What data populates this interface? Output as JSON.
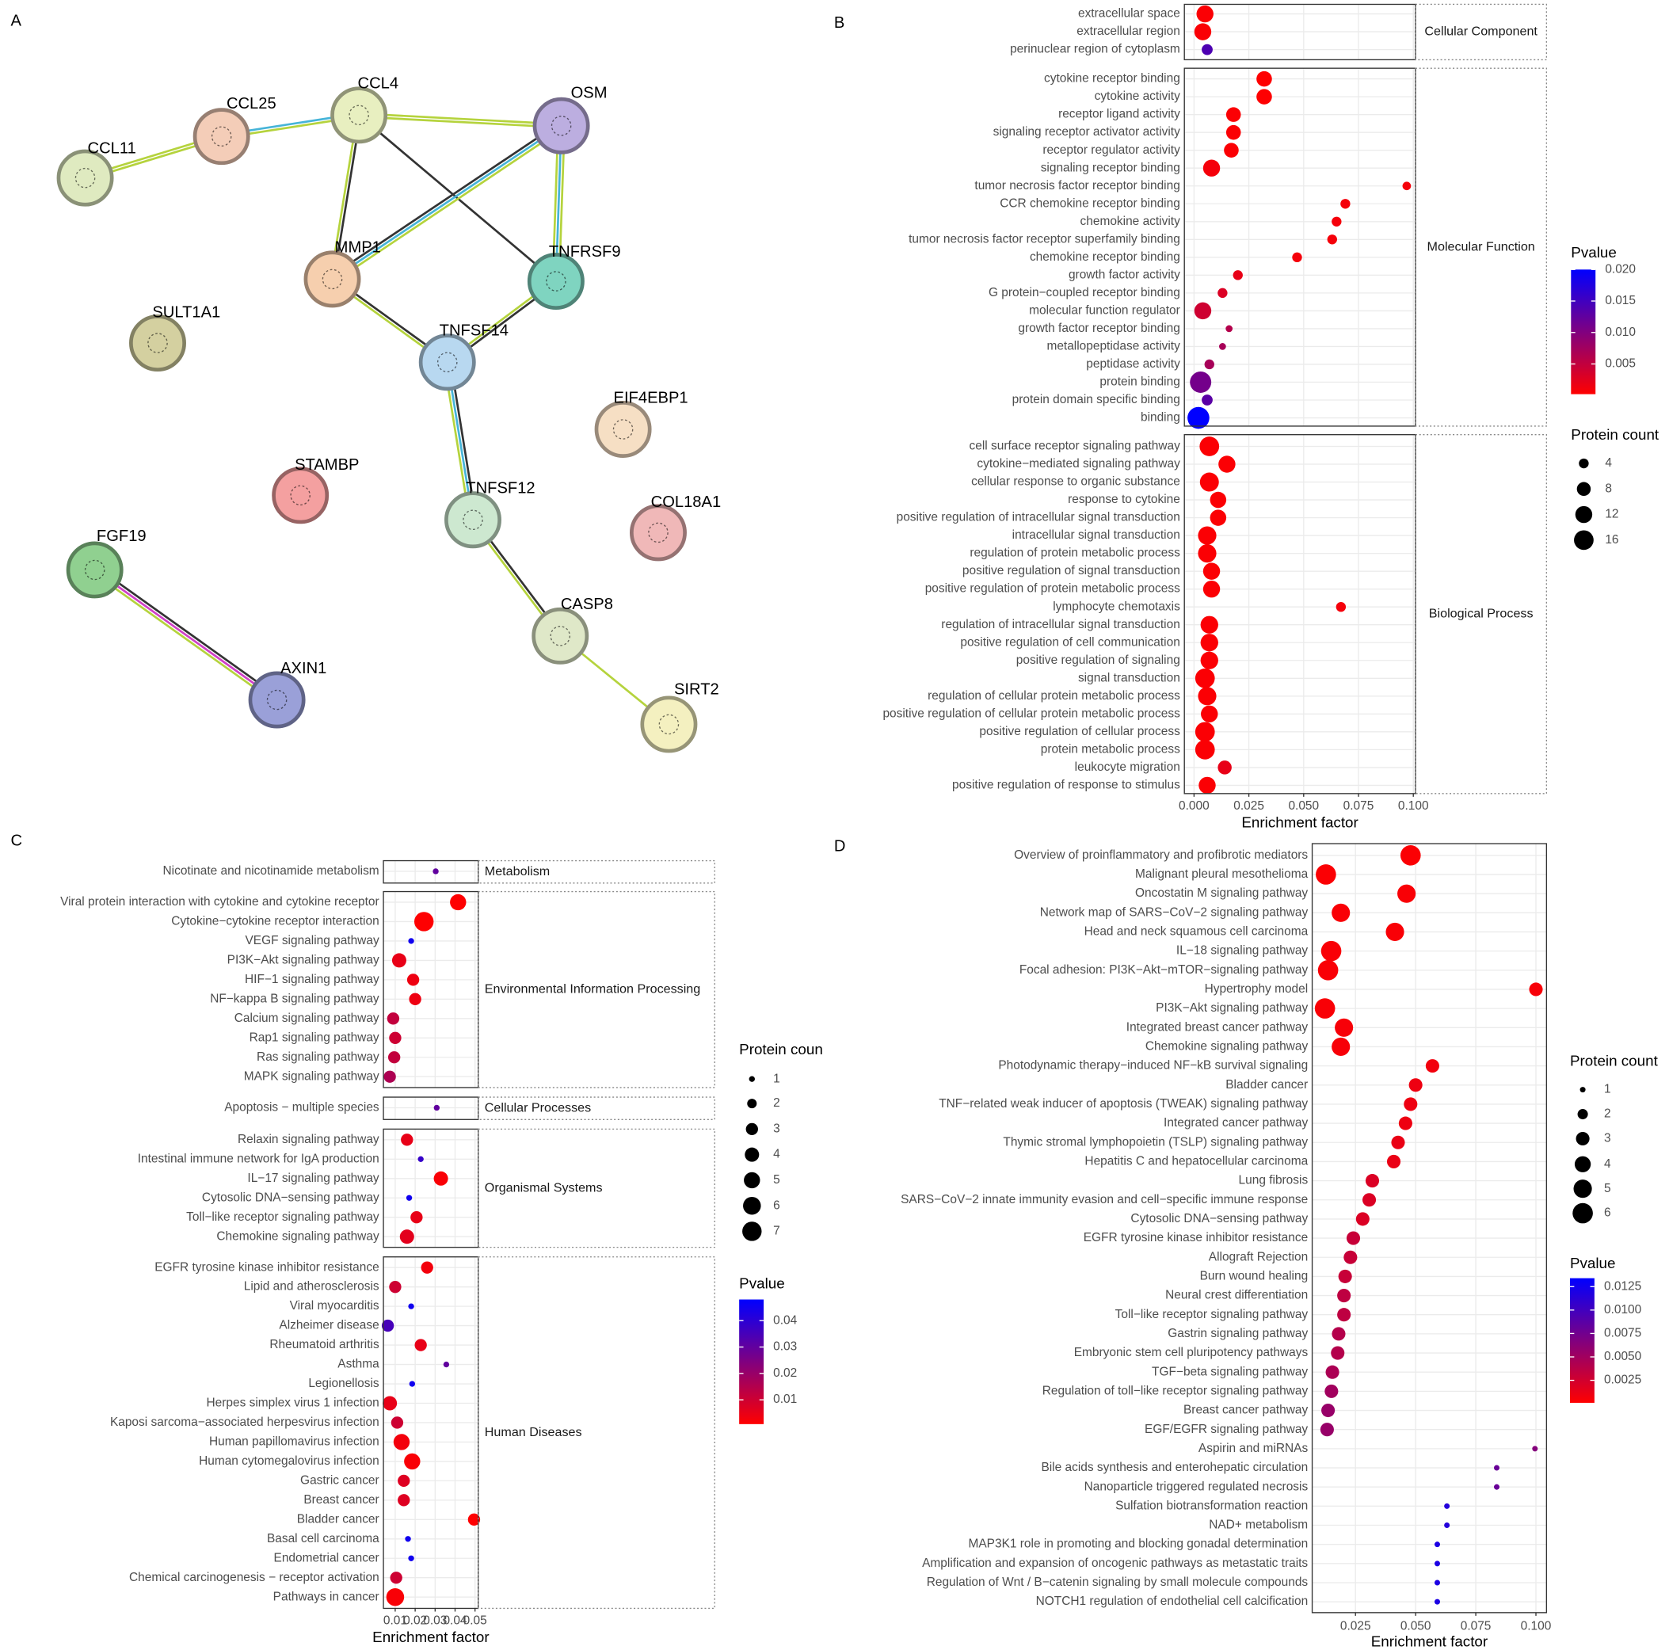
{
  "chart_data": [
    {
      "type": "network",
      "label": "A",
      "nodes": [
        {
          "label": "CCL11",
          "color": "#dfeac0"
        },
        {
          "label": "CCL25",
          "color": "#f4cdb8"
        },
        {
          "label": "CCL4",
          "color": "#e8efc0"
        },
        {
          "label": "OSM",
          "color": "#bcaee0"
        },
        {
          "label": "MMP1",
          "color": "#f6cfae"
        },
        {
          "label": "TNFRSF9",
          "color": "#7fd4c0"
        },
        {
          "label": "SULT1A1",
          "color": "#d4d0a0"
        },
        {
          "label": "TNFSF14",
          "color": "#b8d8f0"
        },
        {
          "label": "EIF4EBP1",
          "color": "#f6dfc4"
        },
        {
          "label": "STAMBP",
          "color": "#f4a0a0"
        },
        {
          "label": "TNFSF12",
          "color": "#cde8d0"
        },
        {
          "label": "COL18A1",
          "color": "#f0b8b8"
        },
        {
          "label": "FGF19",
          "color": "#90d090"
        },
        {
          "label": "CASP8",
          "color": "#dfe8c8"
        },
        {
          "label": "AXIN1",
          "color": "#9aa0d8"
        },
        {
          "label": "SIRT2",
          "color": "#f4f0c0"
        }
      ]
    },
    {
      "type": "dot",
      "label": "B",
      "xlabel": "Enrichment factor",
      "xlim": [
        -0.0044,
        0.101
      ],
      "xticks": [
        {
          "value": 0,
          "label": "0.000"
        },
        0.025,
        {
          "value": 0.05,
          "label": "0.050"
        },
        0.075,
        {
          "value": 0.1,
          "label": "0.100"
        }
      ],
      "color_title": "Pvalue",
      "colors": [
        "#ff0000",
        "#0000ff"
      ],
      "clim": [
        0.0002,
        0.02
      ],
      "cticks": [
        {
          "value": 0.02,
          "label": "0.020"
        },
        0.015,
        {
          "value": 0.01,
          "label": "0.010"
        },
        0.005
      ],
      "size_title": "Protein count",
      "size_ticks": [
        4,
        8,
        12,
        16
      ],
      "groups": [
        {
          "name": "Cellular Component",
          "categories": [
            "extracellular space",
            "extracellular region",
            "perinuclear region of cytoplasm"
          ],
          "values": [
            0.005,
            0.004,
            0.006
          ],
          "count": [
            12,
            12,
            5
          ],
          "pvalue": [
            0.0005,
            0.0006,
            0.014
          ]
        },
        {
          "name": "Molecular Function",
          "categories": [
            "cytokine receptor binding",
            "cytokine activity",
            "receptor ligand activity",
            "signaling receptor activator activity",
            "receptor regulator activity",
            "signaling receptor binding",
            "tumor necrosis factor receptor binding",
            "CCR chemokine receptor binding",
            "chemokine activity",
            "tumor necrosis factor receptor superfamily binding",
            "chemokine receptor binding",
            "growth factor activity",
            "G protein−coupled receptor binding",
            "molecular function regulator",
            "growth factor receptor binding",
            "metallopeptidase activity",
            "peptidase activity",
            "protein binding",
            "protein domain specific binding",
            "binding"
          ],
          "values": [
            0.032,
            0.032,
            0.018,
            0.018,
            0.017,
            0.008,
            0.097,
            0.069,
            0.065,
            0.063,
            0.047,
            0.02,
            0.013,
            0.004,
            0.016,
            0.013,
            0.007,
            0.003,
            0.006,
            0.002
          ],
          "count": [
            10,
            10,
            9,
            9,
            9,
            12,
            3,
            4,
            4,
            4,
            4,
            4,
            4,
            12,
            2,
            2,
            4,
            19,
            5,
            20
          ],
          "pvalue": [
            0.0003,
            0.0003,
            0.0005,
            0.0005,
            0.0005,
            0.001,
            0.001,
            0.001,
            0.001,
            0.001,
            0.001,
            0.002,
            0.003,
            0.004,
            0.006,
            0.007,
            0.007,
            0.011,
            0.013,
            0.02
          ]
        },
        {
          "name": "Biological Process",
          "categories": [
            "cell surface receptor signaling pathway",
            "cytokine−mediated signaling pathway",
            "cellular response to organic substance",
            "response to cytokine",
            "positive regulation of intracellular signal transduction",
            "intracellular signal transduction",
            "regulation of protein metabolic process",
            "positive regulation of signal transduction",
            "positive regulation of protein metabolic process",
            "lymphocyte chemotaxis",
            "regulation of intracellular signal transduction",
            "positive regulation of cell communication",
            "positive regulation of signaling",
            "signal transduction",
            "regulation of cellular protein metabolic process",
            "positive regulation of cellular protein metabolic process",
            "positive regulation of cellular process",
            "protein metabolic process",
            "leukocyte migration",
            "positive regulation of response to stimulus"
          ],
          "values": [
            0.007,
            0.015,
            0.007,
            0.011,
            0.011,
            0.006,
            0.006,
            0.008,
            0.008,
            0.067,
            0.007,
            0.007,
            0.007,
            0.005,
            0.006,
            0.007,
            0.005,
            0.005,
            0.014,
            0.006
          ],
          "count": [
            16,
            12,
            15,
            11,
            11,
            14,
            14,
            12,
            12,
            4,
            13,
            13,
            13,
            16,
            14,
            12,
            16,
            16,
            8,
            12
          ],
          "pvalue": [
            0.0005,
            0.0005,
            0.0005,
            0.0005,
            0.0005,
            0.0005,
            0.0005,
            0.0005,
            0.0005,
            0.001,
            0.0005,
            0.0005,
            0.0005,
            0.0005,
            0.0005,
            0.0005,
            0.0005,
            0.0005,
            0.002,
            0.0005
          ]
        }
      ]
    },
    {
      "type": "dot",
      "label": "C",
      "xlabel": "Enrichment factor",
      "xlim": [
        0.0041,
        0.0516
      ],
      "xticks": [
        0.01,
        0.02,
        0.03,
        0.04,
        0.05
      ],
      "color_title": "Pvalue",
      "colors": [
        "#ff0000",
        "#0000ff"
      ],
      "clim": [
        0.0008,
        0.048
      ],
      "cticks": [
        0.04,
        0.03,
        0.02,
        0.01
      ],
      "size_title": "Protein coun",
      "size_ticks": [
        1,
        2,
        3,
        4,
        5,
        6,
        7
      ],
      "groups": [
        {
          "name": "Metabolism",
          "categories": [
            "Nicotinate and nicotinamide metabolism"
          ],
          "values": [
            0.0303
          ],
          "count": [
            1
          ],
          "pvalue": [
            0.03
          ]
        },
        {
          "name": "Environmental Information Processing",
          "categories": [
            "Viral protein interaction with cytokine and cytokine receptor",
            "Cytokine−cytokine receptor interaction",
            "VEGF signaling pathway",
            "PI3K−Akt signaling pathway",
            "HIF−1 signaling pathway",
            "NF−kappa B signaling pathway",
            "Calcium signaling pathway",
            "Rap1 signaling pathway",
            "Ras signaling pathway",
            "MAPK signaling pathway"
          ],
          "values": [
            0.0415,
            0.0244,
            0.018,
            0.012,
            0.019,
            0.02,
            0.009,
            0.01,
            0.0095,
            0.0073
          ],
          "count": [
            5,
            7,
            1,
            4,
            3,
            3,
            3,
            3,
            3,
            3
          ],
          "pvalue": [
            0.001,
            0.001,
            0.045,
            0.005,
            0.004,
            0.004,
            0.012,
            0.01,
            0.012,
            0.016
          ]
        },
        {
          "name": "Cellular Processes",
          "categories": [
            "Apoptosis − multiple species"
          ],
          "values": [
            0.0308
          ],
          "count": [
            1
          ],
          "pvalue": [
            0.03
          ]
        },
        {
          "name": "Organismal Systems",
          "categories": [
            "Relaxin signaling pathway",
            "Intestinal immune network for IgA production",
            "IL−17 signaling pathway",
            "Cytosolic DNA−sensing pathway",
            "Toll−like receptor signaling pathway",
            "Chemokine signaling pathway"
          ],
          "values": [
            0.0159,
            0.0228,
            0.0329,
            0.017,
            0.0207,
            0.0159
          ],
          "count": [
            3,
            1,
            4,
            1,
            3,
            4
          ],
          "pvalue": [
            0.005,
            0.038,
            0.002,
            0.045,
            0.005,
            0.006
          ]
        },
        {
          "name": "Human Diseases",
          "categories": [
            "EGFR tyrosine kinase inhibitor resistance",
            "Lipid and atherosclerosis",
            "Viral myocarditis",
            "Alzheimer disease",
            "Rheumatoid arthritis",
            "Asthma",
            "Legionellosis",
            "Herpes simplex virus 1 infection",
            "Kaposi sarcoma−associated herpesvirus infection",
            "Human papillomavirus infection",
            "Human cytomegalovirus infection",
            "Gastric cancer",
            "Breast cancer",
            "Bladder cancer",
            "Basal cell carcinoma",
            "Endometrial cancer",
            "Chemical carcinogenesis − receptor activation",
            "Pathways in cancer"
          ],
          "values": [
            0.026,
            0.01,
            0.018,
            0.0063,
            0.0228,
            0.0356,
            0.0185,
            0.0073,
            0.011,
            0.0132,
            0.0185,
            0.0143,
            0.0143,
            0.0495,
            0.0164,
            0.018,
            0.0105,
            0.01
          ],
          "count": [
            3,
            3,
            1,
            3,
            3,
            1,
            1,
            4,
            3,
            5,
            5,
            3,
            3,
            3,
            1,
            1,
            3,
            6
          ],
          "pvalue": [
            0.003,
            0.01,
            0.045,
            0.035,
            0.005,
            0.03,
            0.045,
            0.005,
            0.01,
            0.003,
            0.002,
            0.007,
            0.007,
            0.001,
            0.045,
            0.045,
            0.01,
            0.002
          ]
        }
      ]
    },
    {
      "type": "dot",
      "label": "D",
      "xlabel": "Enrichment factor",
      "xlim": [
        0.007,
        0.1044
      ],
      "xticks": [
        0.025,
        {
          "value": 0.05,
          "label": "0.050"
        },
        0.075,
        {
          "value": 0.1,
          "label": "0.100"
        }
      ],
      "color_title": "Pvalue",
      "colors": [
        "#ff0000",
        "#0000ff"
      ],
      "clim": [
        0.0001,
        0.0134
      ],
      "cticks": [
        0.0125,
        {
          "value": 0.01,
          "label": "0.0100"
        },
        0.0075,
        {
          "value": 0.005,
          "label": "0.0050"
        },
        0.0025
      ],
      "size_title": "Protein count",
      "size_ticks": [
        1,
        2,
        3,
        4,
        5,
        6
      ],
      "groups": [
        {
          "categories": [
            "Overview of proinflammatory and profibrotic mediators",
            "Malignant pleural mesothelioma",
            "Oncostatin M signaling pathway",
            "Network map of SARS−CoV−2 signaling pathway",
            "Head and neck squamous cell carcinoma",
            "IL−18 signaling pathway",
            "Focal adhesion: PI3K−Akt−mTOR−signaling pathway",
            "Hypertrophy model",
            "PI3K−Akt signaling pathway",
            "Integrated breast cancer pathway",
            "Chemokine signaling pathway",
            "Photodynamic therapy−induced NF−kB survival signaling",
            "Bladder cancer",
            "TNF−related weak inducer of apoptosis (TWEAK) signaling pathway",
            "Integrated cancer pathway",
            "Thymic stromal lymphopoietin (TSLP) signaling pathway",
            "Hepatitis C and hepatocellular carcinoma",
            "Lung fibrosis",
            "SARS−CoV−2 innate immunity evasion and cell−specific immune response",
            "Cytosolic DNA−sensing pathway",
            "EGFR tyrosine kinase inhibitor resistance",
            "Allograft Rejection",
            "Burn wound healing",
            "Neural crest differentiation",
            "Toll−like receptor signaling pathway",
            "Gastrin signaling pathway",
            "Embryonic stem cell pluripotency pathways",
            "TGF−beta signaling pathway",
            "Regulation of toll−like receptor signaling pathway",
            "Breast cancer pathway",
            "EGF/EGFR signaling pathway",
            "Aspirin and miRNAs",
            "Bile acids synthesis and enterohepatic circulation ",
            "Nanoparticle triggered regulated necrosis",
            "Sulfation biotransformation reaction",
            "NAD+ metabolism",
            "MAP3K1 role in promoting and blocking gonadal determination",
            "Amplification and expansion of oncogenic pathways as metastatic traits",
            "Regulation of Wnt / B−catenin signaling by small molecule compounds",
            "NOTCH1 regulation of endothelial cell calcification"
          ],
          "values": [
            0.0479,
            0.0127,
            0.0462,
            0.0189,
            0.0414,
            0.0149,
            0.0136,
            0.1,
            0.0123,
            0.0202,
            0.0189,
            0.057,
            0.05,
            0.0479,
            0.0458,
            0.0427,
            0.0409,
            0.032,
            0.0307,
            0.028,
            0.0241,
            0.0229,
            0.0207,
            0.0202,
            0.0202,
            0.018,
            0.0176,
            0.0154,
            0.015,
            0.0136,
            0.0132,
            0.0996,
            0.0837,
            0.0837,
            0.063,
            0.063,
            0.059,
            0.059,
            0.059,
            0.059
          ],
          "count": [
            6,
            6,
            5,
            5,
            5,
            6,
            6,
            3,
            6,
            5,
            5,
            3,
            3,
            3,
            3,
            3,
            3,
            3,
            3,
            3,
            3,
            3,
            3,
            3,
            3,
            3,
            3,
            3,
            3,
            3,
            3,
            1,
            1,
            1,
            1,
            1,
            1,
            1,
            1,
            1
          ],
          "pvalue": [
            0.0003,
            0.0003,
            0.0004,
            0.0004,
            0.0004,
            0.0004,
            0.0004,
            0.0005,
            0.0004,
            0.0005,
            0.0005,
            0.0008,
            0.001,
            0.001,
            0.001,
            0.0012,
            0.0012,
            0.002,
            0.002,
            0.002,
            0.003,
            0.003,
            0.003,
            0.0035,
            0.0035,
            0.004,
            0.004,
            0.0045,
            0.005,
            0.0055,
            0.0055,
            0.0065,
            0.008,
            0.008,
            0.0115,
            0.0115,
            0.012,
            0.012,
            0.012,
            0.012
          ]
        }
      ]
    }
  ]
}
